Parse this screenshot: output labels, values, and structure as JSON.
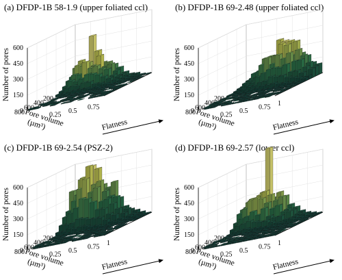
{
  "colors": {
    "floor_dark": "#0b4a36",
    "bar_low": "#123f3a",
    "bar_mid": "#2f7a4f",
    "bar_high": "#cfd35a",
    "bar_peak": "#e8e37a",
    "arrow": "#000000"
  },
  "chart_data": [
    {
      "type": "bar3d",
      "title": "(a) DFDP-1B 58-1.9 (upper foliated ccl)",
      "zlabel": "Number of pores",
      "xlabel": "Pore volume (µm³)",
      "ylabel": "Flatness",
      "z_ticks": [
        "0",
        "150",
        "300",
        "450",
        "600"
      ],
      "x_ticks": [
        "200",
        "400",
        "600",
        "800"
      ],
      "y_ticks": [
        "0.25",
        "0.5",
        "0.75"
      ],
      "zlim": [
        0,
        600
      ],
      "peak_value": 470,
      "peak_at": {
        "pore_volume": 60,
        "flatness": 0.28
      },
      "ridge_max": 270
    },
    {
      "type": "bar3d",
      "title": "(b) DFDP-1B 69-2.48 (upper foliated ccl)",
      "zlabel": "Number of pores",
      "xlabel": "Pore volume (µm³)",
      "ylabel": "Flatness",
      "z_ticks": [
        "0",
        "150",
        "300",
        "450",
        "600"
      ],
      "x_ticks": [
        "200",
        "400",
        "600",
        "800"
      ],
      "y_ticks": [
        "0.25",
        "0.5",
        "0.75",
        "1"
      ],
      "zlim": [
        0,
        600
      ],
      "peak_value": 380,
      "peak_at": {
        "pore_volume": 60,
        "flatness": 0.55
      },
      "ridge_max": 380
    },
    {
      "type": "bar3d",
      "title": "(c) DFDP-1B 69-2.54 (PSZ-2)",
      "zlabel": "Number of pores",
      "xlabel": "Pore volume (µm³)",
      "ylabel": "Flatness",
      "z_ticks": [
        "0",
        "150",
        "300",
        "450",
        "600"
      ],
      "x_ticks": [
        "200",
        "400",
        "600",
        "800"
      ],
      "y_ticks": [
        "0.25",
        "0.5",
        "0.75",
        "1"
      ],
      "zlim": [
        0,
        600
      ],
      "peak_value": 560,
      "peak_at": {
        "pore_volume": 60,
        "flatness": 0.28
      },
      "ridge_max": 520
    },
    {
      "type": "bar3d",
      "title": "(d) DFDP-1B 69-2.57 (lower ccl)",
      "zlabel": "Number of pores",
      "xlabel": "Pore volume (µm³)",
      "ylabel": "Flatness",
      "z_ticks": [
        "0",
        "150",
        "300",
        "450",
        "600"
      ],
      "x_ticks": [
        "200",
        "400",
        "600",
        "800"
      ],
      "y_ticks": [
        "0.25",
        "0.5",
        "0.75",
        "1"
      ],
      "zlim": [
        0,
        600
      ],
      "peak_value": 720,
      "peak_at": {
        "pore_volume": 60,
        "flatness": 0.3
      },
      "ridge_max": 340
    }
  ]
}
